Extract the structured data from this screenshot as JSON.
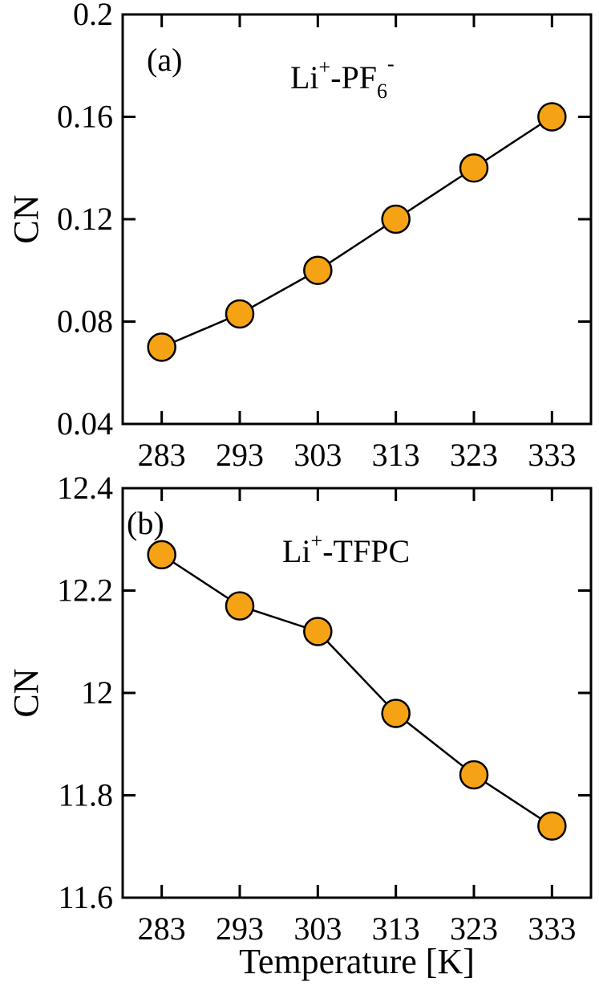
{
  "chart_data": [
    {
      "type": "line",
      "panel_label": "(a)",
      "annotation": {
        "base": "Li",
        "sup1": "+",
        "mid": "-PF",
        "sub": "6",
        "sup2": "-"
      },
      "xlabel": "",
      "ylabel": "CN",
      "x": [
        283,
        293,
        303,
        313,
        323,
        333
      ],
      "series": [
        {
          "values": [
            0.07,
            0.083,
            0.1,
            0.12,
            0.14,
            0.16
          ],
          "color": "#F5A315"
        }
      ],
      "xlim": [
        278,
        338
      ],
      "ylim": [
        0.04,
        0.2
      ],
      "x_ticks": [
        "283",
        "293",
        "303",
        "313",
        "323",
        "333"
      ],
      "y_ticks": [
        "0.04",
        "0.08",
        "0.12",
        "0.16",
        "0.2"
      ],
      "grid": false
    },
    {
      "type": "line",
      "panel_label": "(b)",
      "annotation": {
        "text": "Li",
        "sup": "+",
        "rest": "-TFPC"
      },
      "xlabel": "Temperature [K]",
      "ylabel": "CN",
      "x": [
        283,
        293,
        303,
        313,
        323,
        333
      ],
      "series": [
        {
          "values": [
            12.27,
            12.17,
            12.12,
            11.96,
            11.84,
            11.74
          ],
          "color": "#F5A315"
        }
      ],
      "xlim": [
        278,
        338
      ],
      "ylim": [
        11.6,
        12.4
      ],
      "x_ticks": [
        "283",
        "293",
        "303",
        "313",
        "323",
        "333"
      ],
      "y_ticks": [
        "11.6",
        "11.8",
        "12",
        "12.2",
        "12.4"
      ],
      "grid": false
    }
  ]
}
